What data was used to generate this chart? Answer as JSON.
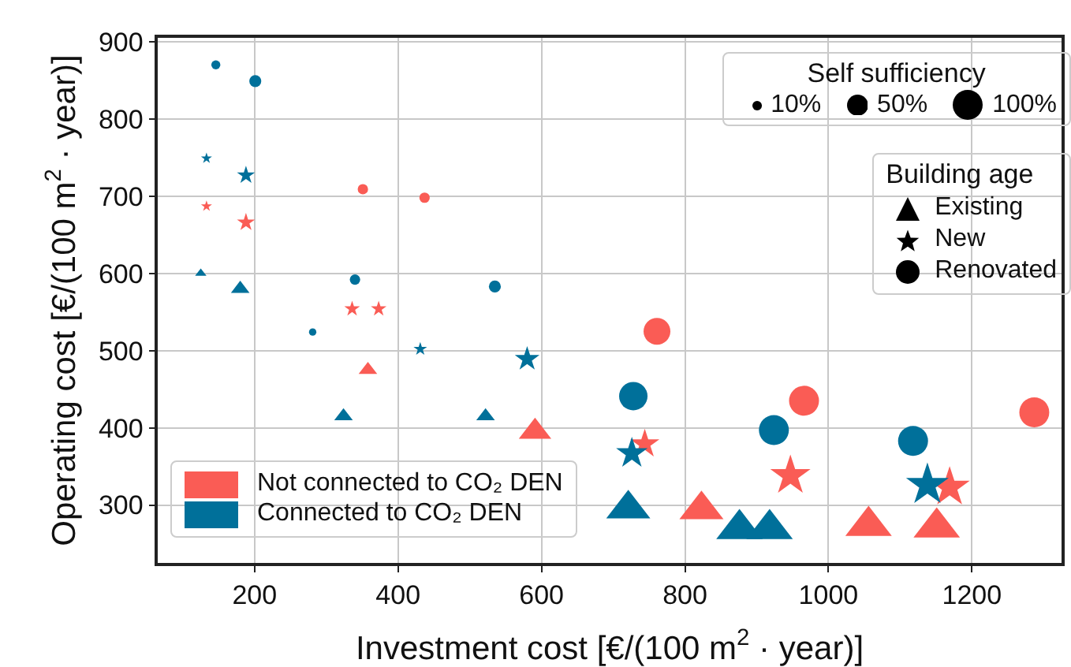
{
  "chart_data": {
    "type": "bubble",
    "xlabel": "Investment cost [€/(100 m$^{2}$ · year)]",
    "ylabel": "Operating cost [€/(100 m$^{2}$ · year)]",
    "xlim": [
      65,
      1325
    ],
    "xticks": [
      200,
      400,
      600,
      800,
      1000,
      1200
    ],
    "ylim": [
      225,
      905
    ],
    "yticks": [
      300,
      400,
      500,
      600,
      700,
      800,
      900
    ],
    "grid": true,
    "size_legend": [
      {
        "value": 10,
        "label": "10%"
      },
      {
        "value": 50,
        "label": "50%"
      },
      {
        "value": 100,
        "label": "100%"
      }
    ],
    "annotations": [
      "Self sufficiency",
      "Building age",
      "Existing",
      "New",
      "Renovated",
      "Not connected to CO₂ DEN",
      "Connected to CO₂ DEN"
    ],
    "series": [
      {
        "color": "#fa5c55",
        "marker": "triangle",
        "x": [
          358,
          591,
          823,
          1056,
          1151
        ],
        "values": [
          475,
          395,
          294,
          273,
          271
        ],
        "sizes": [
          16,
          49,
          90,
          100,
          100
        ]
      },
      {
        "color": "#fa5c55",
        "marker": "star",
        "x": [
          133,
          188,
          336,
          373,
          744,
          947,
          1169
        ],
        "values": [
          687,
          666,
          554,
          554,
          379,
          338,
          323
        ],
        "sizes": [
          6,
          16,
          12,
          12,
          42,
          80,
          80
        ]
      },
      {
        "color": "#fa5c55",
        "marker": "circle",
        "x": [
          351,
          437,
          761,
          966,
          1287
        ],
        "values": [
          709,
          698,
          525,
          435,
          420
        ],
        "sizes": [
          12,
          12,
          80,
          100,
          100
        ]
      },
      {
        "color": "#00709a",
        "marker": "triangle",
        "x": [
          125,
          180,
          324,
          522,
          721,
          876,
          918
        ],
        "values": [
          600,
          580,
          415,
          415,
          295,
          269,
          269
        ],
        "sizes": [
          6,
          16,
          16,
          16,
          90,
          100,
          100
        ]
      },
      {
        "color": "#00709a",
        "marker": "star",
        "x": [
          133,
          188,
          431,
          580,
          726,
          1138
        ],
        "values": [
          749,
          727,
          502,
          489,
          367,
          326
        ],
        "sizes": [
          6,
          16,
          9,
          30,
          49,
          90
        ]
      },
      {
        "color": "#00709a",
        "marker": "circle",
        "x": [
          146,
          201,
          281,
          340,
          535,
          728,
          924,
          1118
        ],
        "values": [
          870,
          849,
          524,
          592,
          583,
          441,
          397,
          383
        ],
        "sizes": [
          9,
          16,
          6,
          12,
          16,
          90,
          100,
          100
        ]
      }
    ]
  }
}
